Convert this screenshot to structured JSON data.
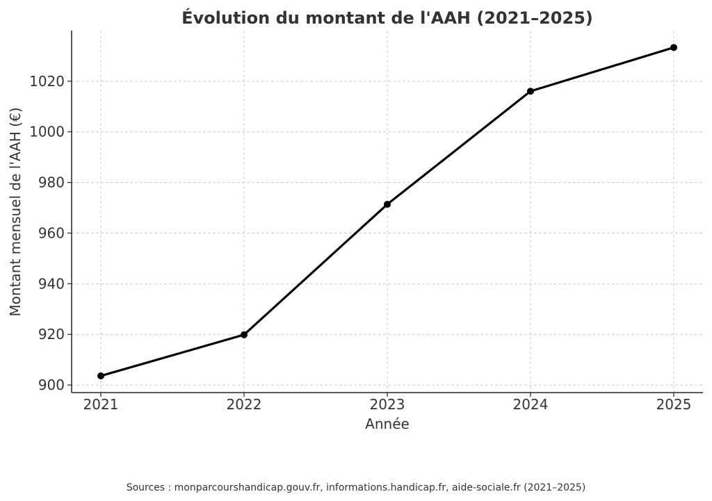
{
  "chart_data": {
    "type": "line",
    "title": "Évolution du montant de l'AAH (2021–2025)",
    "xlabel": "Année",
    "ylabel": "Montant mensuel de l'AAH (€)",
    "x": [
      "2021",
      "2022",
      "2023",
      "2024",
      "2025"
    ],
    "series": [
      {
        "values": [
          903.6,
          919.86,
          971.37,
          1016.05,
          1033.32
        ],
        "color": "#000000"
      }
    ],
    "yticks": [
      900,
      920,
      940,
      960,
      980,
      1000,
      1020
    ],
    "ylim": [
      897,
      1040
    ],
    "grid": true,
    "legend": "none"
  },
  "footer": {
    "source": "Sources : monparcourshandicap.gouv.fr, informations.handicap.fr, aide-sociale.fr (2021–2025)"
  }
}
